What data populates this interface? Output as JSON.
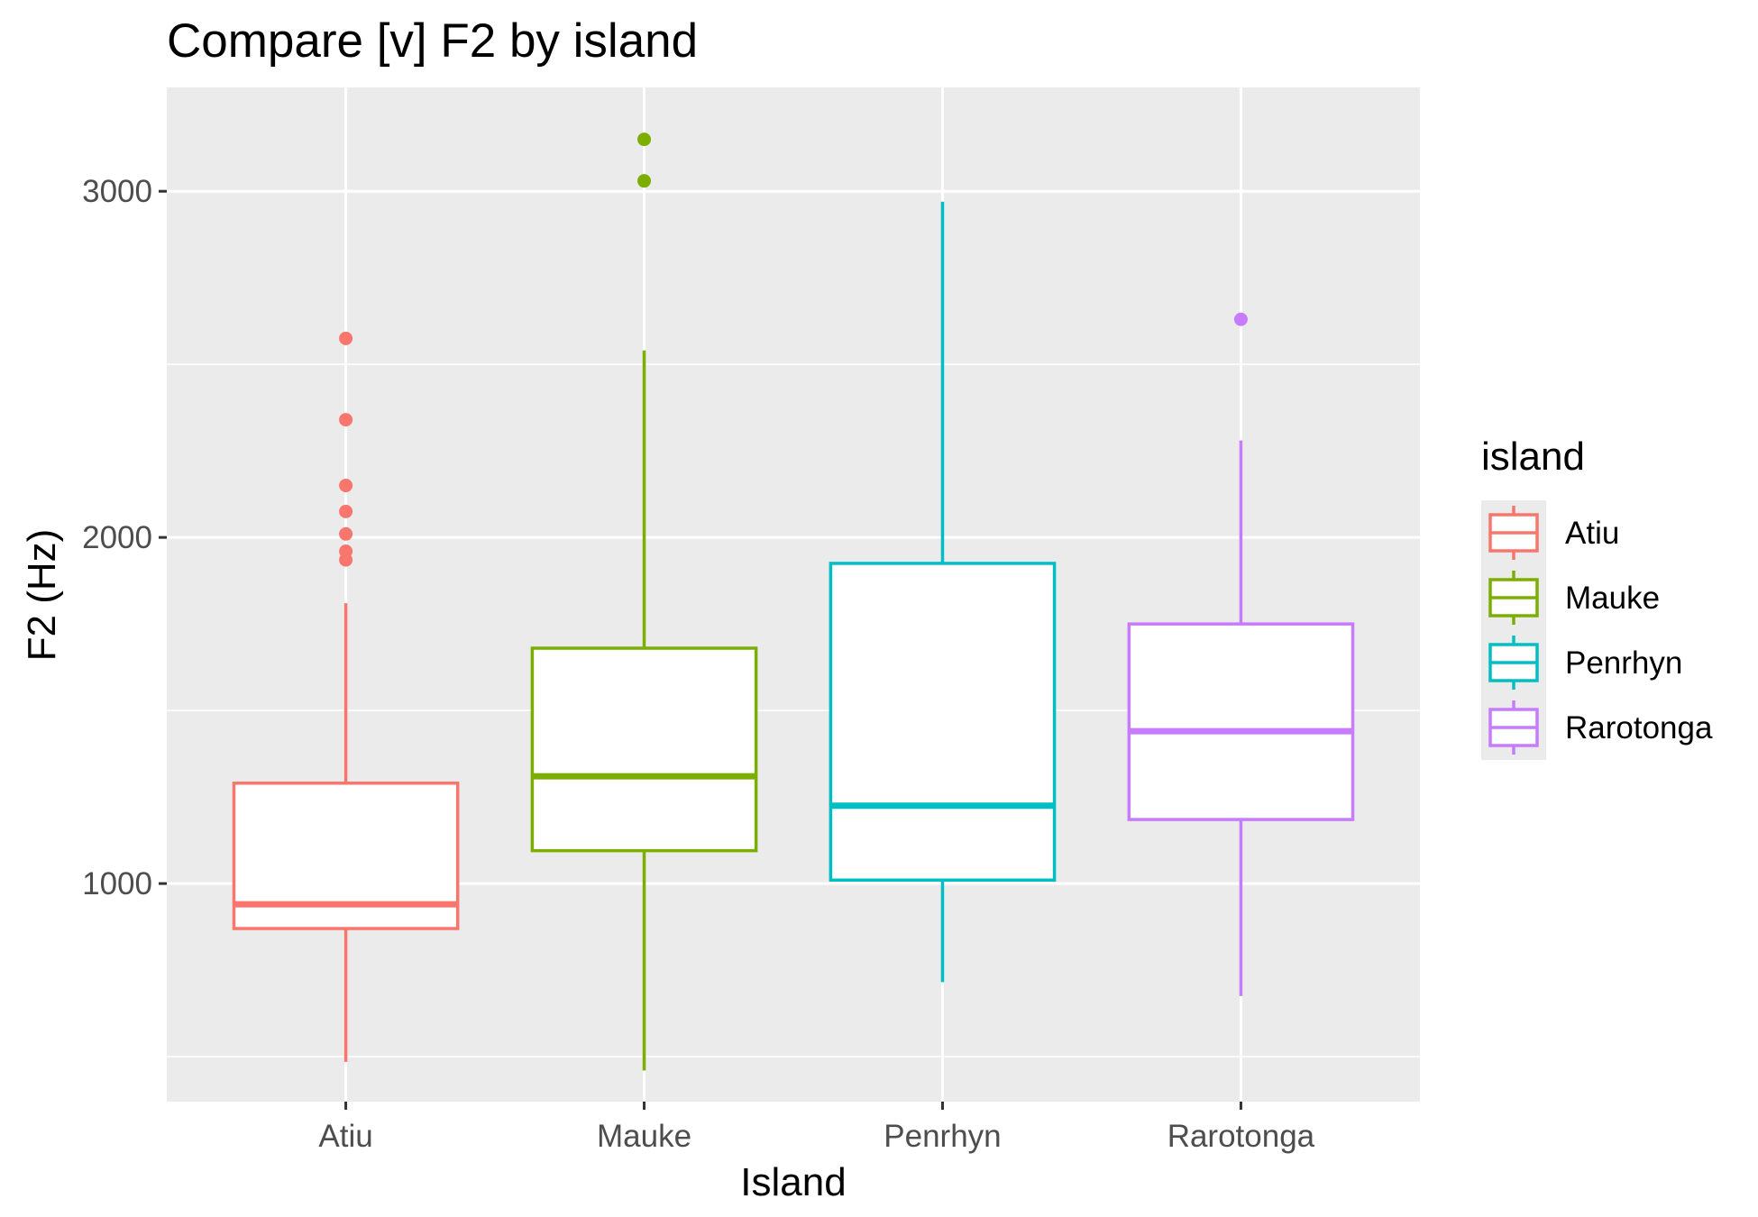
{
  "chart_data": {
    "type": "boxplot",
    "title": "Compare [v] F2 by island",
    "xlabel": "Island",
    "ylabel": "F2 (Hz)",
    "ylim": [
      370,
      3300
    ],
    "yticks": [
      1000,
      2000,
      3000
    ],
    "y_minor_ticks": [
      500,
      1500,
      2500
    ],
    "grid": true,
    "legend": {
      "title": "island",
      "position": "right"
    },
    "colors": [
      "#F8766D",
      "#7CAE00",
      "#00BFC4",
      "#C77CFF"
    ],
    "panel_background": "#EBEBEB",
    "categories": [
      "Atiu",
      "Mauke",
      "Penrhyn",
      "Rarotonga"
    ],
    "series": [
      {
        "name": "Atiu",
        "min": 485,
        "q1": 870,
        "median": 940,
        "q3": 1290,
        "max": 1810,
        "outliers": [
          1935,
          1960,
          2010,
          2075,
          2150,
          2340,
          2575
        ]
      },
      {
        "name": "Mauke",
        "min": 460,
        "q1": 1095,
        "median": 1310,
        "q3": 1680,
        "max": 2540,
        "outliers": [
          3030,
          3150
        ]
      },
      {
        "name": "Penrhyn",
        "min": 715,
        "q1": 1010,
        "median": 1225,
        "q3": 1925,
        "max": 2970,
        "outliers": []
      },
      {
        "name": "Rarotonga",
        "min": 675,
        "q1": 1185,
        "median": 1440,
        "q3": 1750,
        "max": 2280,
        "outliers": [
          2630
        ]
      }
    ]
  }
}
